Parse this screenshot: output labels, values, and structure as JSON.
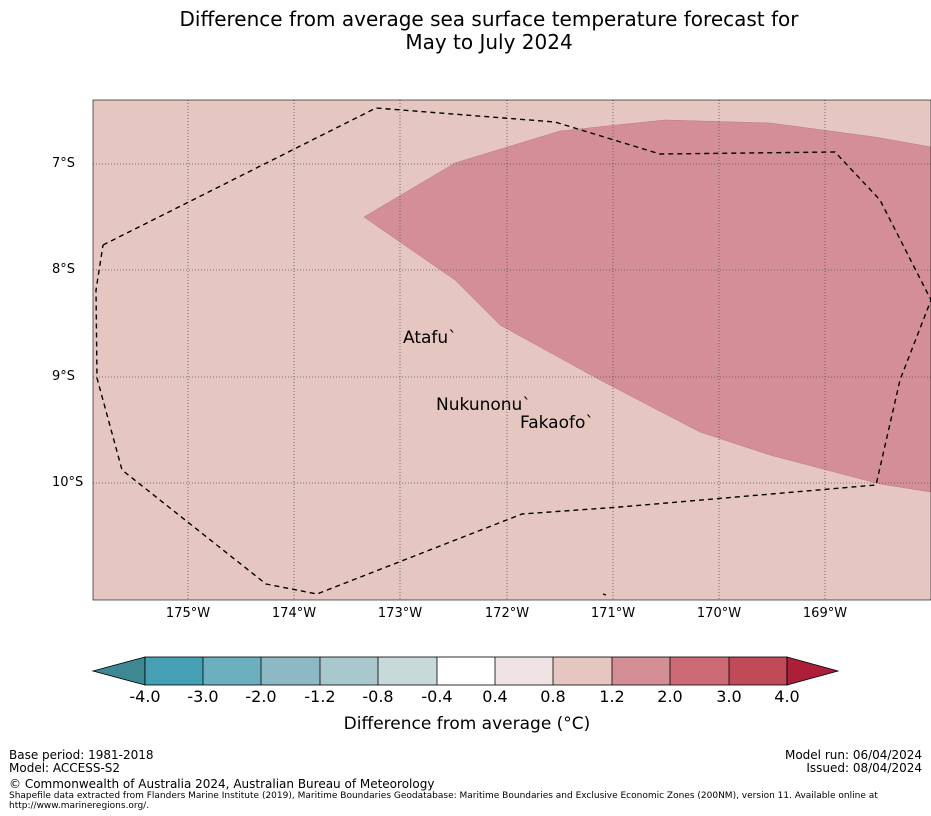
{
  "title_line1": "Difference from average sea surface temperature forecast for",
  "title_line2": "May to July 2024",
  "latitude_labels": [
    "7°S",
    "8°S",
    "9°S",
    "10°S"
  ],
  "longitude_labels": [
    "175°W",
    "174°W",
    "173°W",
    "172°W",
    "171°W",
    "170°W",
    "169°W"
  ],
  "places": [
    {
      "name": "Atafu",
      "marker": "`"
    },
    {
      "name": "Nukunonu",
      "marker": "`"
    },
    {
      "name": "Fakaofo",
      "marker": "`"
    }
  ],
  "map_regions": [
    {
      "category": "0.8 to 1.2",
      "color": "#e6c6c1"
    },
    {
      "category": "1.2 to 2.0",
      "color": "#d48f96"
    }
  ],
  "boundary": "Exclusive Economic Zone (200NM)",
  "colorbar": {
    "ticks": [
      "-4.0",
      "-3.0",
      "-2.0",
      "-1.2",
      "-0.8",
      "-0.4",
      "0.4",
      "0.8",
      "1.2",
      "2.0",
      "3.0",
      "4.0"
    ],
    "colors": [
      "#3d8893",
      "#44a0b2",
      "#6cafbf",
      "#8db9c4",
      "#a9c8cd",
      "#c8d9da",
      "#ffffff",
      "#efe4e3",
      "#e6c6c1",
      "#d48f96",
      "#cc6a75",
      "#c04a58",
      "#ad1f39"
    ],
    "label": "Difference from average (°C)"
  },
  "footer": {
    "base_period": "Base period: 1981-2018",
    "model": "Model: ACCESS-S2",
    "model_run": "Model run: 06/04/2024",
    "issued": "Issued: 08/04/2024",
    "copyright": "© Commonwealth of Australia 2024, Australian Bureau of Meteorology",
    "shapefile_line1": "Shapefile data extracted from Flanders Marine Institute (2019), Maritime Boundaries Geodatabase: Maritime Boundaries and Exclusive Economic Zones (200NM), version 11. Available online at",
    "shapefile_line2": "http://www.marineregions.org/."
  }
}
